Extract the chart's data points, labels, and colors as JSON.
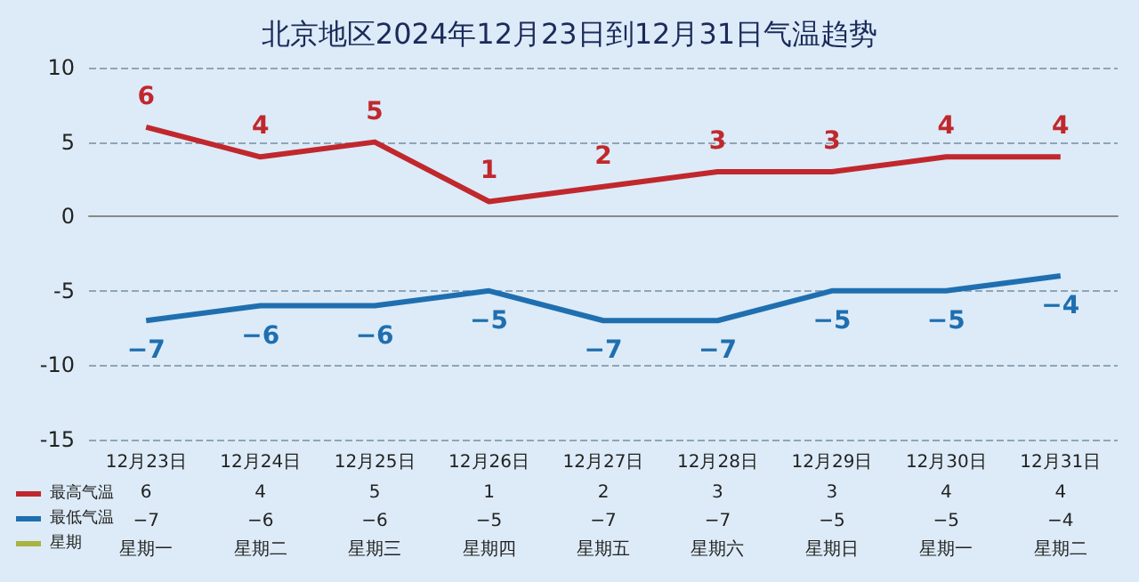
{
  "chart_data": {
    "type": "line",
    "title": "北京地区2024年12月23日到12月31日气温趋势",
    "categories": [
      "12月23日",
      "12月24日",
      "12月25日",
      "12月26日",
      "12月27日",
      "12月28日",
      "12月29日",
      "12月30日",
      "12月31日"
    ],
    "series": [
      {
        "name": "最高气温",
        "color": "#c0282d",
        "values": [
          6,
          4,
          5,
          1,
          2,
          3,
          3,
          4,
          4
        ]
      },
      {
        "name": "最低气温",
        "color": "#1f6fb0",
        "values": [
          -7,
          -6,
          -6,
          -5,
          -7,
          -7,
          -5,
          -5,
          -4
        ]
      },
      {
        "name": "星期",
        "color": "#a8b440",
        "values": [
          null,
          null,
          null,
          null,
          null,
          null,
          null,
          null,
          null
        ],
        "value_labels": [
          "星期一",
          "星期二",
          "星期三",
          "星期四",
          "星期五",
          "星期六",
          "星期日",
          "星期一",
          "星期二"
        ]
      }
    ],
    "annotations": [
      "6",
      "4",
      "5",
      "1",
      "2",
      "3",
      "3",
      "4",
      "4",
      "−7",
      "−6",
      "−6",
      "−5",
      "−7",
      "−7",
      "−5",
      "−5",
      "−4"
    ],
    "ylim": [
      -15,
      10
    ],
    "yticks": [
      -15,
      -10,
      -5,
      0,
      5,
      10
    ],
    "grid": "y",
    "legend": "bottom left",
    "marker": "none",
    "line_style": "solid",
    "data_labels": true
  }
}
